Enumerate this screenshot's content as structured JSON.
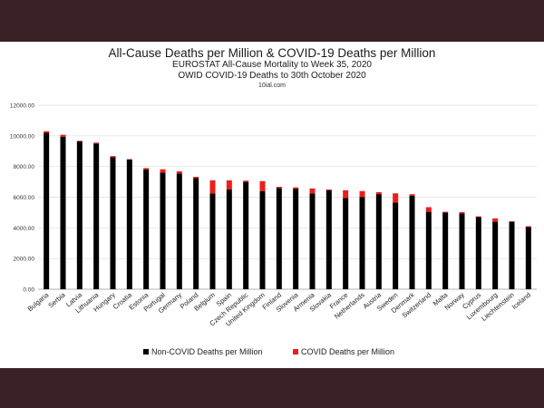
{
  "chart_data": {
    "type": "bar",
    "stacked": true,
    "title": "All-Cause Deaths per Million & COVID-19 Deaths per Million",
    "subtitle": [
      "EUROSTAT All-Cause Mortality to Week 35, 2020",
      "OWID COVID-19 Deaths to 30th October 2020"
    ],
    "source": "10ial.com",
    "xlabel": "",
    "ylabel": "",
    "ylim": [
      0,
      12000
    ],
    "yticks": [
      "0.00",
      "2000.00",
      "4000.00",
      "6000.00",
      "8000.00",
      "10000.00",
      "12000.00"
    ],
    "grid": true,
    "legend_position": "bottom",
    "categories": [
      "Bulgaria",
      "Serbia",
      "Latvia",
      "Lithuania",
      "Hungary",
      "Croatia",
      "Estonia",
      "Portugal",
      "Germany",
      "Poland",
      "Belgium",
      "Spain",
      "Czech Republic",
      "United Kingdom",
      "Finland",
      "Slovenia",
      "Armenia",
      "Slovakia",
      "France",
      "Netherlands",
      "Austria",
      "Sweden",
      "Denmark",
      "Switzerland",
      "Malta",
      "Norway",
      "Cyprus",
      "Luxembourg",
      "Liechtenstein",
      "Iceland"
    ],
    "series": [
      {
        "name": "Non-COVID Deaths per Million",
        "color": "#000000",
        "values": [
          10200,
          9950,
          9650,
          9500,
          8600,
          8450,
          7800,
          7600,
          7550,
          7250,
          6250,
          6500,
          7000,
          6400,
          6600,
          6550,
          6250,
          6450,
          5950,
          6000,
          6200,
          5650,
          6100,
          5050,
          5000,
          4950,
          4700,
          4400,
          4400,
          4050
        ]
      },
      {
        "name": "COVID Deaths per Million",
        "color": "#ee1c1c",
        "values": [
          100,
          120,
          30,
          60,
          80,
          30,
          100,
          220,
          140,
          80,
          850,
          600,
          80,
          650,
          80,
          90,
          320,
          60,
          500,
          400,
          130,
          600,
          100,
          300,
          50,
          80,
          50,
          220,
          30,
          60
        ]
      }
    ]
  }
}
